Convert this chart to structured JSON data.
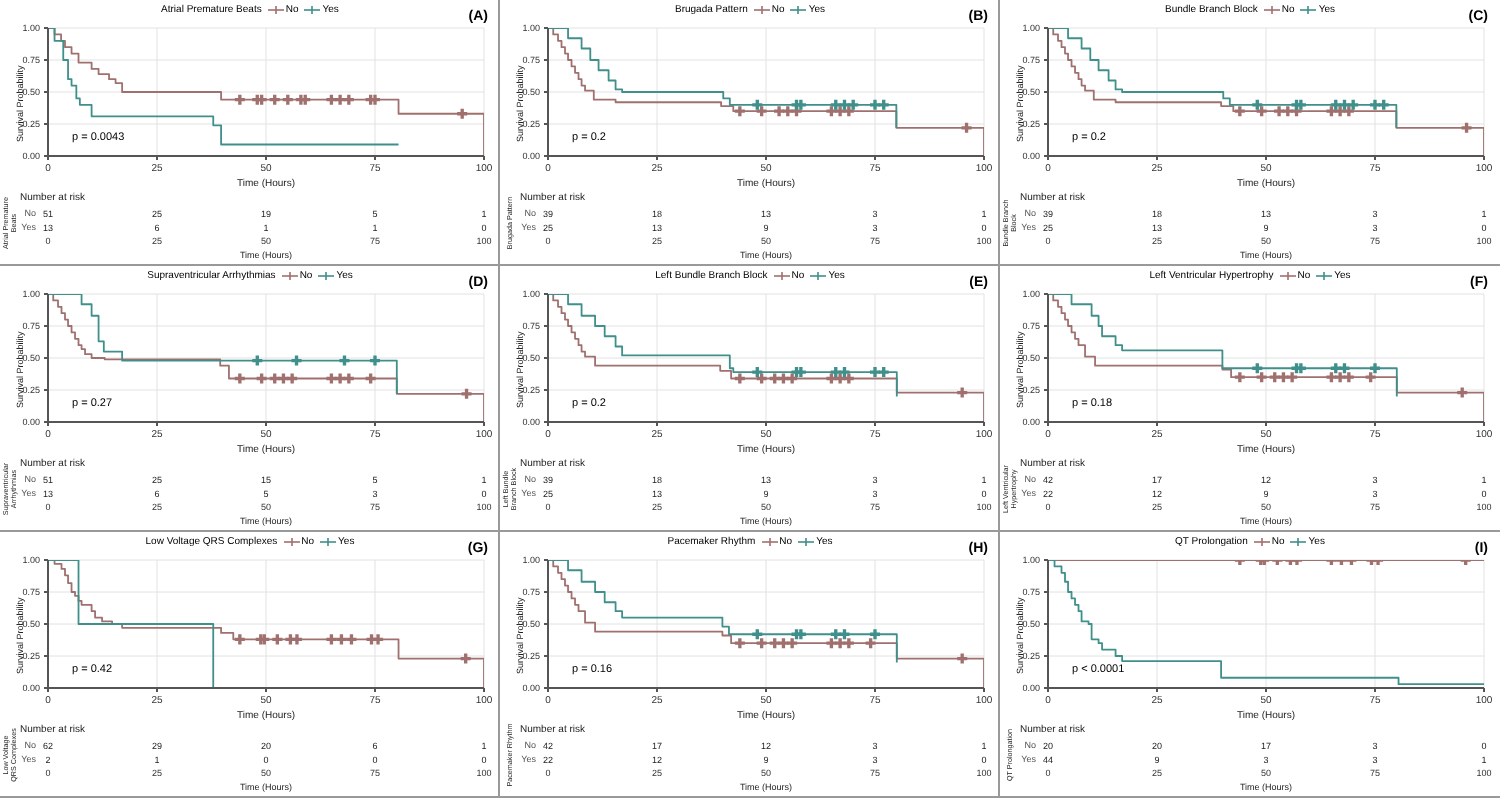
{
  "chart_data": [
    {
      "type": "step",
      "legend_title": "Atrial Premature Beats",
      "legend": "top",
      "xlabel": "Time (Hours)",
      "ylabel": "Survival Probability",
      "xlim": [
        0,
        100
      ],
      "ylim": [
        0,
        1
      ],
      "xticks": [
        0,
        25,
        50,
        75,
        100
      ],
      "yticks": [
        {
          "value": 0,
          "label": "0.00"
        },
        {
          "value": 0.25,
          "label": "0.25"
        },
        {
          "value": 0.5,
          "label": "0.50"
        },
        {
          "value": 0.75,
          "label": "0.75"
        },
        {
          "value": 1,
          "label": "1.00"
        }
      ],
      "grid": true,
      "annotations": [
        "(A)",
        "p = 0.0043"
      ],
      "series": [
        {
          "name": "No",
          "color": "#a0706e",
          "x": [
            0,
            1.5,
            3,
            3.9,
            5.4,
            7,
            10,
            11.6,
            14,
            15.5,
            17,
            39.7,
            80.4,
            100
          ],
          "values": [
            1,
            0.95,
            0.9,
            0.85,
            0.8,
            0.73,
            0.68,
            0.64,
            0.6,
            0.57,
            0.5,
            0.44,
            0.33,
            0
          ]
        },
        {
          "name": "Yes",
          "color": "#3f8f8a",
          "x": [
            0,
            1.5,
            3.5,
            4.6,
            5.4,
            6.5,
            7.3,
            10,
            37.9,
            39.7,
            80.4
          ],
          "values": [
            1,
            0.9,
            0.75,
            0.6,
            0.55,
            0.45,
            0.4,
            0.31,
            0.24,
            0.09,
            0.09
          ]
        },
        {
          "type": "scatter",
          "marker": "cross",
          "color": "#a0706e",
          "x": [
            44,
            48,
            49,
            52,
            55,
            58,
            59,
            65,
            67,
            69,
            74,
            75,
            95
          ],
          "values": [
            0.44,
            0.44,
            0.44,
            0.44,
            0.44,
            0.44,
            0.44,
            0.44,
            0.44,
            0.44,
            0.44,
            0.44,
            0.33
          ]
        }
      ]
    },
    {
      "type": "heatmap",
      "title": "Number at risk",
      "xlabel": "Time (Hours)",
      "ylabel": "Atrial Premature Beats",
      "data_labels": true,
      "categories": [
        "0",
        "25",
        "50",
        "75",
        "100"
      ],
      "y_categories": [
        "No",
        "Yes"
      ],
      "cells": [
        [
          51,
          25,
          19,
          5,
          1
        ],
        [
          13,
          6,
          1,
          1,
          0
        ]
      ]
    },
    {
      "type": "step",
      "legend_title": "Brugada Pattern",
      "legend": "top",
      "xlabel": "Time (Hours)",
      "ylabel": "Survival Probability",
      "xlim": [
        0,
        100
      ],
      "ylim": [
        0,
        1
      ],
      "xticks": [
        0,
        25,
        50,
        75,
        100
      ],
      "yticks": [
        {
          "value": 0,
          "label": "0.00"
        },
        {
          "value": 0.25,
          "label": "0.25"
        },
        {
          "value": 0.5,
          "label": "0.50"
        },
        {
          "value": 0.75,
          "label": "0.75"
        },
        {
          "value": 1,
          "label": "1.00"
        }
      ],
      "grid": true,
      "annotations": [
        "(B)",
        "p = 0.2"
      ],
      "series": [
        {
          "name": "No",
          "color": "#a0706e",
          "x": [
            0,
            1.2,
            2.3,
            3.1,
            3.9,
            4.6,
            5.4,
            6.2,
            7,
            7.7,
            8.5,
            10.5,
            15.5,
            39.7,
            42.5,
            79.9,
            100
          ],
          "values": [
            1,
            0.95,
            0.9,
            0.85,
            0.8,
            0.75,
            0.7,
            0.65,
            0.6,
            0.55,
            0.51,
            0.44,
            0.42,
            0.39,
            0.35,
            0.22,
            0
          ]
        },
        {
          "name": "Yes",
          "color": "#3f8f8a",
          "x": [
            0,
            4.6,
            7.7,
            9.7,
            11.6,
            13.9,
            15.5,
            17,
            40.2,
            41.7,
            79.9
          ],
          "values": [
            1,
            0.92,
            0.84,
            0.75,
            0.67,
            0.59,
            0.52,
            0.5,
            0.45,
            0.4,
            0.22
          ]
        },
        {
          "type": "scatter",
          "marker": "cross",
          "color": "#a0706e",
          "x": [
            44,
            49,
            53,
            55,
            57,
            65,
            67,
            69,
            96
          ],
          "values": [
            0.35,
            0.35,
            0.35,
            0.35,
            0.35,
            0.35,
            0.35,
            0.35,
            0.22
          ]
        },
        {
          "type": "scatter",
          "marker": "cross",
          "color": "#3f8f8a",
          "x": [
            48,
            57,
            58,
            66,
            68,
            70,
            75,
            77
          ],
          "values": [
            0.4,
            0.4,
            0.4,
            0.4,
            0.4,
            0.4,
            0.4,
            0.4
          ]
        }
      ]
    },
    {
      "type": "heatmap",
      "title": "Number at risk",
      "xlabel": "Time (Hours)",
      "ylabel": "Brugada Pattern",
      "data_labels": true,
      "categories": [
        "0",
        "25",
        "50",
        "75",
        "100"
      ],
      "y_categories": [
        "No",
        "Yes"
      ],
      "cells": [
        [
          39,
          18,
          13,
          3,
          1
        ],
        [
          25,
          13,
          9,
          3,
          0
        ]
      ]
    },
    {
      "type": "step",
      "legend_title": "Bundle Branch Block",
      "legend": "top",
      "xlabel": "Time (Hours)",
      "ylabel": "Survival Probability",
      "xlim": [
        0,
        100
      ],
      "ylim": [
        0,
        1
      ],
      "xticks": [
        0,
        25,
        50,
        75,
        100
      ],
      "yticks": [
        {
          "value": 0,
          "label": "0.00"
        },
        {
          "value": 0.25,
          "label": "0.25"
        },
        {
          "value": 0.5,
          "label": "0.50"
        },
        {
          "value": 0.75,
          "label": "0.75"
        },
        {
          "value": 1,
          "label": "1.00"
        }
      ],
      "grid": true,
      "annotations": [
        "(C)",
        "p = 0.2"
      ],
      "series": [
        {
          "name": "No",
          "color": "#a0706e",
          "x": [
            0,
            1.2,
            2.3,
            3.1,
            3.9,
            4.6,
            5.4,
            6.2,
            7,
            7.7,
            8.5,
            10.5,
            15.5,
            39.7,
            42.5,
            79.9,
            100
          ],
          "values": [
            1,
            0.95,
            0.9,
            0.85,
            0.8,
            0.75,
            0.7,
            0.65,
            0.6,
            0.55,
            0.51,
            0.44,
            0.42,
            0.39,
            0.35,
            0.22,
            0
          ]
        },
        {
          "name": "Yes",
          "color": "#3f8f8a",
          "x": [
            0,
            4.6,
            7.7,
            9.7,
            11.6,
            13.9,
            15.5,
            17,
            40.2,
            41.7,
            79.9
          ],
          "values": [
            1,
            0.92,
            0.84,
            0.75,
            0.67,
            0.59,
            0.52,
            0.5,
            0.45,
            0.4,
            0.22
          ]
        },
        {
          "type": "scatter",
          "marker": "cross",
          "color": "#a0706e",
          "x": [
            44,
            49,
            53,
            55,
            57,
            65,
            67,
            69,
            96
          ],
          "values": [
            0.35,
            0.35,
            0.35,
            0.35,
            0.35,
            0.35,
            0.35,
            0.35,
            0.22
          ]
        },
        {
          "type": "scatter",
          "marker": "cross",
          "color": "#3f8f8a",
          "x": [
            48,
            57,
            58,
            66,
            68,
            70,
            75,
            77
          ],
          "values": [
            0.4,
            0.4,
            0.4,
            0.4,
            0.4,
            0.4,
            0.4,
            0.4
          ]
        }
      ]
    },
    {
      "type": "heatmap",
      "title": "Number at risk",
      "xlabel": "Time (Hours)",
      "ylabel": "Bundle Branch Block",
      "data_labels": true,
      "categories": [
        "0",
        "25",
        "50",
        "75",
        "100"
      ],
      "y_categories": [
        "No",
        "Yes"
      ],
      "cells": [
        [
          39,
          18,
          13,
          3,
          1
        ],
        [
          25,
          13,
          9,
          3,
          0
        ]
      ]
    },
    {
      "type": "step",
      "legend_title": "Supraventricular Arrhythmias",
      "legend": "top",
      "xlabel": "Time (Hours)",
      "ylabel": "Survival Probability",
      "xlim": [
        0,
        100
      ],
      "ylim": [
        0,
        1
      ],
      "xticks": [
        0,
        25,
        50,
        75,
        100
      ],
      "yticks": [
        {
          "value": 0,
          "label": "0.00"
        },
        {
          "value": 0.25,
          "label": "0.25"
        },
        {
          "value": 0.5,
          "label": "0.50"
        },
        {
          "value": 0.75,
          "label": "0.75"
        },
        {
          "value": 1,
          "label": "1.00"
        }
      ],
      "grid": true,
      "annotations": [
        "(D)",
        "p = 0.27"
      ],
      "series": [
        {
          "name": "No",
          "color": "#a0706e",
          "x": [
            0,
            1.2,
            2.3,
            3.1,
            3.9,
            4.6,
            5.4,
            6.2,
            7,
            7.7,
            8.5,
            10,
            13,
            39.5,
            41.5,
            80,
            100
          ],
          "values": [
            1,
            0.95,
            0.9,
            0.85,
            0.8,
            0.75,
            0.7,
            0.65,
            0.6,
            0.57,
            0.53,
            0.5,
            0.49,
            0.44,
            0.34,
            0.22,
            0
          ]
        },
        {
          "name": "Yes",
          "color": "#3f8f8a",
          "x": [
            0,
            7.7,
            10,
            11.6,
            12.8,
            17,
            80
          ],
          "values": [
            1,
            0.92,
            0.83,
            0.63,
            0.55,
            0.48,
            0.22
          ]
        },
        {
          "type": "scatter",
          "marker": "cross",
          "color": "#a0706e",
          "x": [
            44,
            49,
            52,
            54,
            56,
            65,
            67,
            69,
            74,
            96
          ],
          "values": [
            0.34,
            0.34,
            0.34,
            0.34,
            0.34,
            0.34,
            0.34,
            0.34,
            0.34,
            0.22
          ]
        },
        {
          "type": "scatter",
          "marker": "cross",
          "color": "#3f8f8a",
          "x": [
            48,
            57,
            68,
            75
          ],
          "values": [
            0.48,
            0.48,
            0.48,
            0.48
          ]
        }
      ]
    },
    {
      "type": "heatmap",
      "title": "Number at risk",
      "xlabel": "Time (Hours)",
      "ylabel": "Supraventricular Arrhythmias",
      "data_labels": true,
      "categories": [
        "0",
        "25",
        "50",
        "75",
        "100"
      ],
      "y_categories": [
        "No",
        "Yes"
      ],
      "cells": [
        [
          51,
          25,
          15,
          5,
          1
        ],
        [
          13,
          6,
          5,
          3,
          0
        ]
      ]
    },
    {
      "type": "step",
      "legend_title": "Left Bundle Branch Block",
      "legend": "top",
      "xlabel": "Time (Hours)",
      "ylabel": "Survival Probability",
      "xlim": [
        0,
        100
      ],
      "ylim": [
        0,
        1
      ],
      "xticks": [
        0,
        25,
        50,
        75,
        100
      ],
      "yticks": [
        {
          "value": 0,
          "label": "0.00"
        },
        {
          "value": 0.25,
          "label": "0.25"
        },
        {
          "value": 0.5,
          "label": "0.50"
        },
        {
          "value": 0.75,
          "label": "0.75"
        },
        {
          "value": 1,
          "label": "1.00"
        }
      ],
      "grid": true,
      "annotations": [
        "(E)",
        "p = 0.2"
      ],
      "series": [
        {
          "name": "No",
          "color": "#a0706e",
          "x": [
            0,
            1.2,
            2.3,
            3.1,
            3.9,
            4.6,
            5.4,
            6.2,
            7,
            7.7,
            8.5,
            10.8,
            39.5,
            42,
            80,
            100
          ],
          "values": [
            1,
            0.95,
            0.9,
            0.85,
            0.8,
            0.75,
            0.7,
            0.65,
            0.6,
            0.55,
            0.51,
            0.44,
            0.4,
            0.34,
            0.23,
            0
          ]
        },
        {
          "name": "Yes",
          "color": "#3f8f8a",
          "x": [
            0,
            4.6,
            7.7,
            10.8,
            13,
            15.5,
            17,
            41.7,
            42.5,
            80
          ],
          "values": [
            1,
            0.92,
            0.83,
            0.75,
            0.67,
            0.59,
            0.52,
            0.42,
            0.39,
            0.2
          ]
        },
        {
          "type": "scatter",
          "marker": "cross",
          "color": "#a0706e",
          "x": [
            44,
            49,
            52,
            54,
            56,
            65,
            67,
            69,
            95
          ],
          "values": [
            0.34,
            0.34,
            0.34,
            0.34,
            0.34,
            0.34,
            0.34,
            0.34,
            0.23
          ]
        },
        {
          "type": "scatter",
          "marker": "cross",
          "color": "#3f8f8a",
          "x": [
            48,
            57,
            58,
            66,
            68,
            75,
            77
          ],
          "values": [
            0.39,
            0.39,
            0.39,
            0.39,
            0.39,
            0.39,
            0.39
          ]
        }
      ]
    },
    {
      "type": "heatmap",
      "title": "Number at risk",
      "xlabel": "Time (Hours)",
      "ylabel": "Left Bundle Branch Block",
      "data_labels": true,
      "categories": [
        "0",
        "25",
        "50",
        "75",
        "100"
      ],
      "y_categories": [
        "No",
        "Yes"
      ],
      "cells": [
        [
          39,
          18,
          13,
          3,
          1
        ],
        [
          25,
          13,
          9,
          3,
          0
        ]
      ]
    },
    {
      "type": "step",
      "legend_title": "Left Ventricular Hypertrophy",
      "legend": "top",
      "xlabel": "Time (Hours)",
      "ylabel": "Survival Probability",
      "xlim": [
        0,
        100
      ],
      "ylim": [
        0,
        1
      ],
      "xticks": [
        0,
        25,
        50,
        75,
        100
      ],
      "yticks": [
        {
          "value": 0,
          "label": "0.00"
        },
        {
          "value": 0.25,
          "label": "0.25"
        },
        {
          "value": 0.5,
          "label": "0.50"
        },
        {
          "value": 0.75,
          "label": "0.75"
        },
        {
          "value": 1,
          "label": "1.00"
        }
      ],
      "grid": true,
      "annotations": [
        "(F)",
        "p = 0.18"
      ],
      "series": [
        {
          "name": "No",
          "color": "#a0706e",
          "x": [
            0,
            1.2,
            2.3,
            3.1,
            3.9,
            4.6,
            5.4,
            6.2,
            7,
            8.5,
            10.8,
            40,
            42,
            80,
            100
          ],
          "values": [
            1,
            0.95,
            0.9,
            0.85,
            0.8,
            0.75,
            0.7,
            0.65,
            0.6,
            0.51,
            0.44,
            0.41,
            0.35,
            0.23,
            0
          ]
        },
        {
          "name": "Yes",
          "color": "#3f8f8a",
          "x": [
            0,
            5.4,
            10,
            11.6,
            12.4,
            15.5,
            17,
            40,
            80
          ],
          "values": [
            1,
            0.92,
            0.83,
            0.75,
            0.67,
            0.6,
            0.56,
            0.42,
            0.2
          ]
        },
        {
          "type": "scatter",
          "marker": "cross",
          "color": "#a0706e",
          "x": [
            44,
            49,
            52,
            54,
            56,
            65,
            67,
            69,
            74,
            95
          ],
          "values": [
            0.35,
            0.35,
            0.35,
            0.35,
            0.35,
            0.35,
            0.35,
            0.35,
            0.35,
            0.23
          ]
        },
        {
          "type": "scatter",
          "marker": "cross",
          "color": "#3f8f8a",
          "x": [
            48,
            57,
            58,
            66,
            68,
            75
          ],
          "values": [
            0.42,
            0.42,
            0.42,
            0.42,
            0.42,
            0.42
          ]
        }
      ]
    },
    {
      "type": "heatmap",
      "title": "Number at risk",
      "xlabel": "Time (Hours)",
      "ylabel": "Left Ventricular Hypertrophy",
      "data_labels": true,
      "categories": [
        "0",
        "25",
        "50",
        "75",
        "100"
      ],
      "y_categories": [
        "No",
        "Yes"
      ],
      "cells": [
        [
          42,
          17,
          12,
          3,
          1
        ],
        [
          22,
          12,
          9,
          3,
          0
        ]
      ]
    },
    {
      "type": "step",
      "legend_title": "Low Voltage QRS Complexes",
      "legend": "top",
      "xlabel": "Time (Hours)",
      "ylabel": "Survival Probability",
      "xlim": [
        0,
        100
      ],
      "ylim": [
        0,
        1
      ],
      "xticks": [
        0,
        25,
        50,
        75,
        100
      ],
      "yticks": [
        {
          "value": 0,
          "label": "0.00"
        },
        {
          "value": 0.25,
          "label": "0.25"
        },
        {
          "value": 0.5,
          "label": "0.50"
        },
        {
          "value": 0.75,
          "label": "0.75"
        },
        {
          "value": 1,
          "label": "1.00"
        }
      ],
      "grid": true,
      "annotations": [
        "(G)",
        "p = 0.42"
      ],
      "series": [
        {
          "name": "No",
          "color": "#a0706e",
          "x": [
            0,
            1.5,
            3.1,
            3.9,
            4.6,
            5.4,
            6.2,
            7,
            7.7,
            10,
            10.8,
            12.4,
            14.7,
            17,
            39.7,
            42.5,
            80.4,
            100
          ],
          "values": [
            1,
            0.97,
            0.93,
            0.88,
            0.82,
            0.75,
            0.72,
            0.68,
            0.65,
            0.6,
            0.55,
            0.52,
            0.5,
            0.47,
            0.43,
            0.38,
            0.23,
            0
          ]
        },
        {
          "name": "Yes",
          "color": "#3f8f8a",
          "x": [
            0,
            7,
            37.9
          ],
          "values": [
            1,
            0.5,
            0
          ]
        },
        {
          "type": "scatter",
          "marker": "cross",
          "color": "#a0706e",
          "x": [
            44,
            48.8,
            49.6,
            52.6,
            55.6,
            57.1,
            65,
            67.3,
            69.6,
            74.2,
            75.7,
            95.8
          ],
          "values": [
            0.38,
            0.38,
            0.38,
            0.38,
            0.38,
            0.38,
            0.38,
            0.38,
            0.38,
            0.38,
            0.38,
            0.23
          ]
        }
      ]
    },
    {
      "type": "heatmap",
      "title": "Number at risk",
      "xlabel": "Time (Hours)",
      "ylabel": "Low Voltage QRS Complexes",
      "data_labels": true,
      "categories": [
        "0",
        "25",
        "50",
        "75",
        "100"
      ],
      "y_categories": [
        "No",
        "Yes"
      ],
      "cells": [
        [
          62,
          29,
          20,
          6,
          1
        ],
        [
          2,
          1,
          0,
          0,
          0
        ]
      ]
    },
    {
      "type": "step",
      "legend_title": "Pacemaker Rhythm",
      "legend": "top",
      "xlabel": "Time (Hours)",
      "ylabel": "Survival Probability",
      "xlim": [
        0,
        100
      ],
      "ylim": [
        0,
        1
      ],
      "xticks": [
        0,
        25,
        50,
        75,
        100
      ],
      "yticks": [
        {
          "value": 0,
          "label": "0.00"
        },
        {
          "value": 0.25,
          "label": "0.25"
        },
        {
          "value": 0.5,
          "label": "0.50"
        },
        {
          "value": 0.75,
          "label": "0.75"
        },
        {
          "value": 1,
          "label": "1.00"
        }
      ],
      "grid": true,
      "annotations": [
        "(H)",
        "p = 0.16"
      ],
      "series": [
        {
          "name": "No",
          "color": "#a0706e",
          "x": [
            0,
            1.2,
            2.3,
            3.1,
            3.9,
            4.6,
            5.4,
            6.2,
            7,
            8.5,
            10.8,
            40,
            42,
            80,
            100
          ],
          "values": [
            1,
            0.95,
            0.9,
            0.85,
            0.8,
            0.75,
            0.7,
            0.65,
            0.6,
            0.51,
            0.44,
            0.41,
            0.35,
            0.23,
            0
          ]
        },
        {
          "name": "Yes",
          "color": "#3f8f8a",
          "x": [
            0,
            4.6,
            7.7,
            10.8,
            13,
            15.5,
            17,
            40,
            41.5,
            80
          ],
          "values": [
            1,
            0.92,
            0.83,
            0.75,
            0.67,
            0.6,
            0.55,
            0.48,
            0.42,
            0.2
          ]
        },
        {
          "type": "scatter",
          "marker": "cross",
          "color": "#a0706e",
          "x": [
            44,
            49,
            52,
            54,
            56,
            65,
            67,
            69,
            74,
            95
          ],
          "values": [
            0.35,
            0.35,
            0.35,
            0.35,
            0.35,
            0.35,
            0.35,
            0.35,
            0.35,
            0.23
          ]
        },
        {
          "type": "scatter",
          "marker": "cross",
          "color": "#3f8f8a",
          "x": [
            48,
            57,
            58,
            66,
            68,
            75
          ],
          "values": [
            0.42,
            0.42,
            0.42,
            0.42,
            0.42,
            0.42
          ]
        }
      ]
    },
    {
      "type": "heatmap",
      "title": "Number at risk",
      "xlabel": "Time (Hours)",
      "ylabel": "Pacemaker Rhythm",
      "data_labels": true,
      "categories": [
        "0",
        "25",
        "50",
        "75",
        "100"
      ],
      "y_categories": [
        "No",
        "Yes"
      ],
      "cells": [
        [
          42,
          17,
          12,
          3,
          1
        ],
        [
          22,
          12,
          9,
          3,
          0
        ]
      ]
    },
    {
      "type": "step",
      "legend_title": "QT Prolongation",
      "legend": "top",
      "xlabel": "Time (Hours)",
      "ylabel": "Survival Probability",
      "xlim": [
        0,
        100
      ],
      "ylim": [
        0,
        1
      ],
      "xticks": [
        0,
        25,
        50,
        75,
        100
      ],
      "yticks": [
        {
          "value": 0,
          "label": "0.00"
        },
        {
          "value": 0.25,
          "label": "0.25"
        },
        {
          "value": 0.5,
          "label": "0.50"
        },
        {
          "value": 0.75,
          "label": "0.75"
        },
        {
          "value": 1,
          "label": "1.00"
        }
      ],
      "grid": true,
      "annotations": [
        "(I)",
        "p < 0.0001"
      ],
      "series": [
        {
          "name": "No",
          "color": "#a0706e",
          "x": [
            0,
            100
          ],
          "values": [
            1,
            1
          ]
        },
        {
          "name": "Yes",
          "color": "#3f8f8a",
          "x": [
            0,
            1.5,
            3.1,
            3.9,
            4.6,
            5.4,
            6.2,
            7,
            7.7,
            9.3,
            10,
            11.6,
            12.4,
            15.5,
            17,
            39.7,
            80.4,
            100
          ],
          "values": [
            1,
            0.95,
            0.9,
            0.83,
            0.75,
            0.7,
            0.65,
            0.6,
            0.52,
            0.5,
            0.38,
            0.35,
            0.3,
            0.25,
            0.21,
            0.08,
            0.03,
            0.03
          ]
        },
        {
          "type": "scatter",
          "marker": "cross",
          "color": "#a0706e",
          "x": [
            44,
            48.8,
            49.6,
            52.6,
            55.6,
            57.1,
            65,
            67.3,
            69.6,
            74.2,
            75.7,
            95.8
          ],
          "values": [
            1,
            1,
            1,
            1,
            1,
            1,
            1,
            1,
            1,
            1,
            1,
            1
          ]
        }
      ]
    },
    {
      "type": "heatmap",
      "title": "Number at risk",
      "xlabel": "Time (Hours)",
      "ylabel": "QT Prolongation",
      "data_labels": true,
      "categories": [
        "0",
        "25",
        "50",
        "75",
        "100"
      ],
      "y_categories": [
        "No",
        "Yes"
      ],
      "cells": [
        [
          20,
          20,
          17,
          3,
          0
        ],
        [
          44,
          9,
          3,
          3,
          1
        ]
      ]
    }
  ]
}
